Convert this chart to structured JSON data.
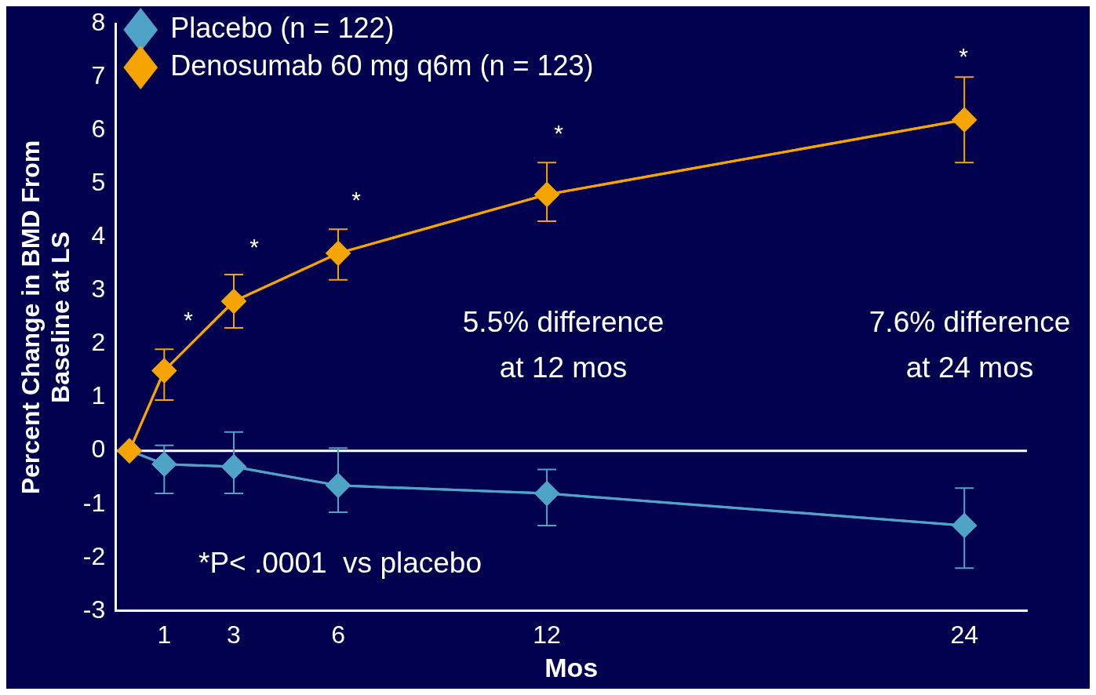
{
  "chart_data": {
    "type": "line",
    "xlabel": "Mos",
    "ylabel": "Percent Change in BMD From\nBaseline at LS",
    "x": [
      0,
      1,
      3,
      6,
      12,
      24
    ],
    "series": [
      {
        "name": "Placebo (n = 122)",
        "color": "#4fa3c7",
        "values": [
          0,
          -0.25,
          -0.3,
          -0.65,
          -0.8,
          -1.4
        ],
        "errors": [
          null,
          [
            -0.8,
            0.1
          ],
          [
            -0.8,
            0.35
          ],
          [
            -1.15,
            0.05
          ],
          [
            -1.4,
            -0.35
          ],
          [
            -2.2,
            -0.7
          ]
        ]
      },
      {
        "name": "Denosumab 60 mg q6m (n = 123)",
        "color": "#f5a400",
        "values": [
          0,
          1.5,
          2.8,
          3.7,
          4.8,
          6.2
        ],
        "errors": [
          null,
          [
            0.95,
            1.9
          ],
          [
            2.3,
            3.3
          ],
          [
            3.2,
            4.15
          ],
          [
            4.3,
            5.4
          ],
          [
            5.4,
            7.0
          ]
        ]
      }
    ],
    "xlim": [
      -0.4,
      25.8
    ],
    "xticks": [
      1,
      3,
      6,
      12,
      24
    ],
    "ylim": [
      -3,
      8
    ],
    "yticks": [
      -3,
      -2,
      -1,
      0,
      1,
      2,
      3,
      4,
      5,
      6,
      7,
      8
    ],
    "ref_lines": [
      {
        "axis": "y",
        "value": 0,
        "color": "#ffffff"
      }
    ],
    "annotations": [
      "*",
      "*",
      "*",
      "*",
      "*",
      "5.5% difference\nat 12 mos",
      "7.6% difference\nat 24 mos",
      "*P< .0001  vs placebo"
    ],
    "grid": false,
    "legend": "top left",
    "marker": "diamond",
    "line_style": "solid"
  }
}
